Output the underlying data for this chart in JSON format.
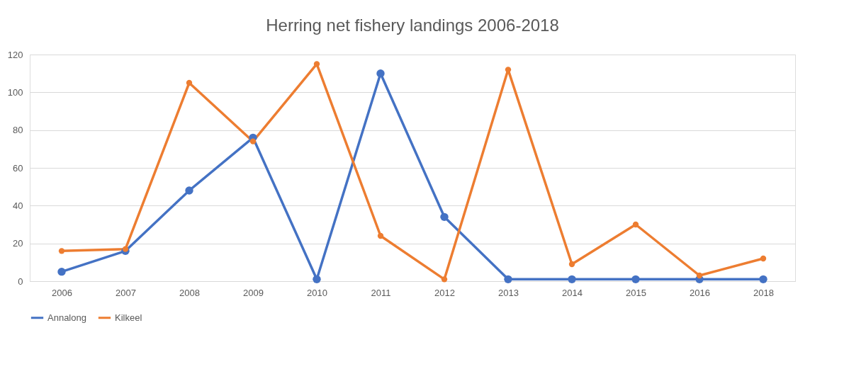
{
  "chart_data": {
    "type": "line",
    "title": "Herring net fishery landings 2006-2018",
    "categories": [
      "2006",
      "2007",
      "2008",
      "2009",
      "2010",
      "2011",
      "2012",
      "2013",
      "2014",
      "2015",
      "2016",
      "2018"
    ],
    "series": [
      {
        "name": "Annalong",
        "color": "#4472c4",
        "values": [
          5,
          16,
          48,
          76,
          1,
          110,
          34,
          1,
          1,
          1,
          1,
          1
        ]
      },
      {
        "name": "Kilkeel",
        "color": "#ed7d31",
        "values": [
          16,
          17,
          105,
          74,
          115,
          24,
          1,
          112,
          9,
          30,
          3,
          12
        ]
      }
    ],
    "ylim": [
      0,
      120
    ],
    "yticks": [
      0,
      20,
      40,
      60,
      80,
      100,
      120
    ],
    "grid": "y",
    "legend": "bottom",
    "marker": "circle",
    "line_style": "solid"
  }
}
